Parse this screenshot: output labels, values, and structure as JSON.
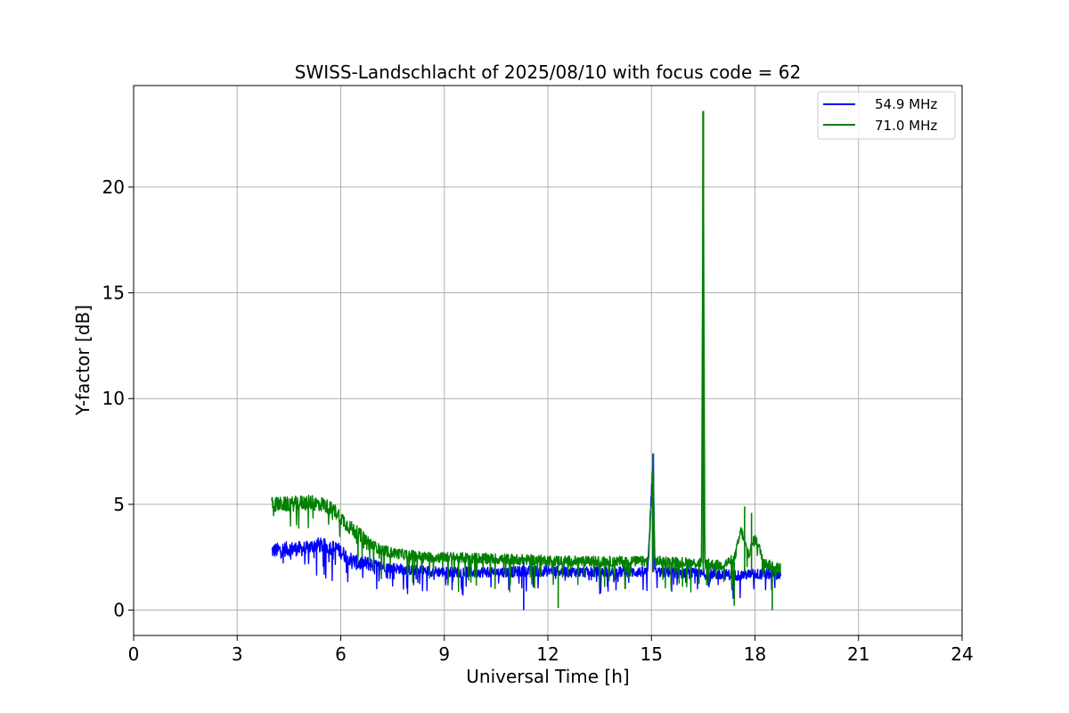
{
  "chart_data": {
    "type": "line",
    "title": "SWISS-Landschlacht of 2025/08/10 with focus code = 62",
    "xlabel": "Universal Time [h]",
    "ylabel": "Y-factor [dB]",
    "xlim": [
      0,
      24
    ],
    "ylim": [
      -1.2,
      24.8
    ],
    "xticks": [
      0,
      3,
      6,
      9,
      12,
      15,
      18,
      21,
      24
    ],
    "yticks": [
      0,
      5,
      10,
      15,
      20
    ],
    "grid": true,
    "legend_position": "top-right",
    "series": [
      {
        "name": "54.9 MHz",
        "color": "#0000ff",
        "x": [
          4.0,
          4.5,
          5.0,
          5.3,
          5.6,
          5.9,
          6.2,
          6.5,
          6.8,
          7.1,
          7.5,
          8.0,
          8.5,
          9.0,
          10.0,
          11.0,
          11.3,
          12.0,
          13.0,
          14.0,
          14.9,
          15.05,
          15.1,
          15.3,
          16.0,
          16.5,
          17.0,
          17.5,
          18.0,
          18.5,
          18.75
        ],
        "y": [
          2.8,
          2.9,
          2.9,
          3.1,
          3.0,
          2.9,
          2.5,
          2.2,
          2.2,
          2.1,
          2.0,
          1.9,
          1.85,
          1.8,
          1.8,
          1.8,
          1.85,
          1.85,
          1.8,
          1.8,
          1.8,
          7.4,
          1.8,
          1.8,
          1.75,
          1.7,
          1.7,
          1.65,
          1.7,
          1.7,
          1.7
        ]
      },
      {
        "name": "71.0 MHz",
        "color": "#008000",
        "x": [
          4.0,
          4.5,
          5.0,
          5.5,
          5.9,
          6.2,
          6.5,
          6.8,
          7.1,
          7.5,
          8.0,
          8.5,
          9.0,
          10.0,
          11.0,
          12.0,
          13.0,
          14.0,
          14.9,
          15.05,
          15.1,
          15.3,
          16.0,
          16.45,
          16.5,
          16.55,
          17.0,
          17.4,
          17.6,
          17.8,
          18.0,
          18.3,
          18.6,
          18.75
        ],
        "y": [
          5.0,
          5.0,
          5.1,
          5.0,
          4.6,
          4.0,
          3.6,
          3.2,
          2.9,
          2.7,
          2.6,
          2.5,
          2.5,
          2.45,
          2.4,
          2.35,
          2.3,
          2.3,
          2.3,
          6.5,
          2.3,
          2.3,
          2.25,
          2.2,
          23.6,
          2.2,
          2.1,
          2.4,
          3.8,
          2.6,
          3.4,
          2.2,
          2.0,
          2.0
        ]
      }
    ],
    "features": [
      {
        "x": 11.3,
        "dip_to": 0.0
      },
      {
        "x": 12.3,
        "dip_to": 0.1
      },
      {
        "x": 17.4,
        "dip_to": 0.2
      },
      {
        "x": 18.5,
        "dip_to": 0.0
      },
      {
        "x": 15.05,
        "spike_to": 7.4
      },
      {
        "x": 16.5,
        "spike_to": 23.6
      },
      {
        "x": 17.7,
        "spike_to": 4.9
      },
      {
        "x": 17.9,
        "spike_to": 4.6
      }
    ]
  }
}
